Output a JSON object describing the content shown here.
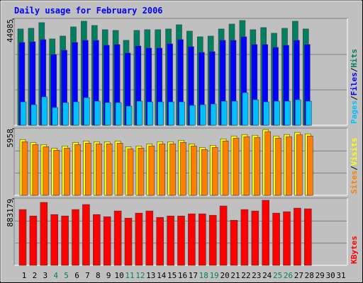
{
  "chart_data": [
    {
      "type": "bar",
      "title": "Daily usage for February 2006",
      "ylim": [
        0,
        44985
      ],
      "yticks": [
        44985
      ],
      "legend_separator": "/",
      "series": [
        {
          "name": "Hits",
          "color": "#008060",
          "values": [
            40800,
            41100,
            43500,
            36600,
            37800,
            41700,
            44100,
            42300,
            40500,
            40200,
            36000,
            40200,
            40500,
            40500,
            40800,
            42600,
            39900,
            37500,
            37800,
            40800,
            42900,
            44400,
            40500,
            41400,
            39000,
            41100,
            44100,
            40800,
            null,
            null,
            null
          ]
        },
        {
          "name": "Files",
          "color": "#0000ff",
          "values": [
            35100,
            35400,
            36300,
            30000,
            31800,
            35100,
            36000,
            36000,
            33900,
            34200,
            30600,
            33600,
            32700,
            32700,
            34500,
            36300,
            33300,
            30900,
            31200,
            36000,
            36000,
            37500,
            34200,
            34200,
            33000,
            33900,
            36000,
            34200,
            null,
            null,
            null
          ]
        },
        {
          "name": "Pages",
          "color": "#00c0ff",
          "values": [
            9900,
            8700,
            12000,
            7500,
            9600,
            9900,
            11700,
            10200,
            9600,
            9600,
            8100,
            10200,
            9900,
            9900,
            9900,
            9900,
            8400,
            8700,
            9000,
            10200,
            10200,
            13800,
            10800,
            9900,
            10200,
            10200,
            10800,
            10200,
            null,
            null,
            null
          ]
        }
      ]
    },
    {
      "type": "bar",
      "ylim": [
        0,
        5958
      ],
      "yticks": [
        5958
      ],
      "legend_separator": "/",
      "series": [
        {
          "name": "Visits",
          "color": "#ffff00",
          "values": [
            4992,
            4736,
            4544,
            4224,
            4416,
            4736,
            4864,
            4800,
            4800,
            4864,
            4352,
            4416,
            4608,
            4800,
            4800,
            4928,
            4608,
            4288,
            4480,
            5056,
            5312,
            5440,
            5376,
            5888,
            5312,
            5440,
            5632,
            5504,
            null,
            null,
            null
          ]
        },
        {
          "name": "Sites",
          "color": "#ff8000",
          "values": [
            4800,
            4544,
            4352,
            4032,
            4224,
            4544,
            4672,
            4608,
            4608,
            4672,
            4160,
            4224,
            4416,
            4608,
            4608,
            4736,
            4416,
            4096,
            4288,
            4864,
            5120,
            5248,
            5184,
            5696,
            5120,
            5248,
            5440,
            5312,
            null,
            null,
            null
          ]
        }
      ]
    },
    {
      "type": "bar",
      "ylim": [
        0,
        883179
      ],
      "yticks": [
        883179
      ],
      "categories": [
        "1",
        "2",
        "3",
        "4",
        "5",
        "6",
        "7",
        "8",
        "9",
        "10",
        "11",
        "12",
        "13",
        "14",
        "15",
        "16",
        "17",
        "18",
        "19",
        "20",
        "21",
        "22",
        "23",
        "24",
        "25",
        "26",
        "27",
        "28",
        "29",
        "30",
        "31"
      ],
      "weekend_indices": [
        3,
        4,
        10,
        11,
        17,
        18,
        24,
        25
      ],
      "weekday_color": "#000000",
      "weekend_color": "#008060",
      "series": [
        {
          "name": "KBytes",
          "color": "#ff0000",
          "values": [
            741000,
            655500,
            836000,
            674500,
            655500,
            741000,
            807500,
            674500,
            646000,
            722000,
            627000,
            693500,
            722000,
            636500,
            655500,
            655500,
            684000,
            684000,
            665000,
            788500,
            598500,
            741000,
            722000,
            864500,
            693500,
            712500,
            760000,
            750500,
            null,
            null,
            null
          ]
        }
      ]
    }
  ]
}
